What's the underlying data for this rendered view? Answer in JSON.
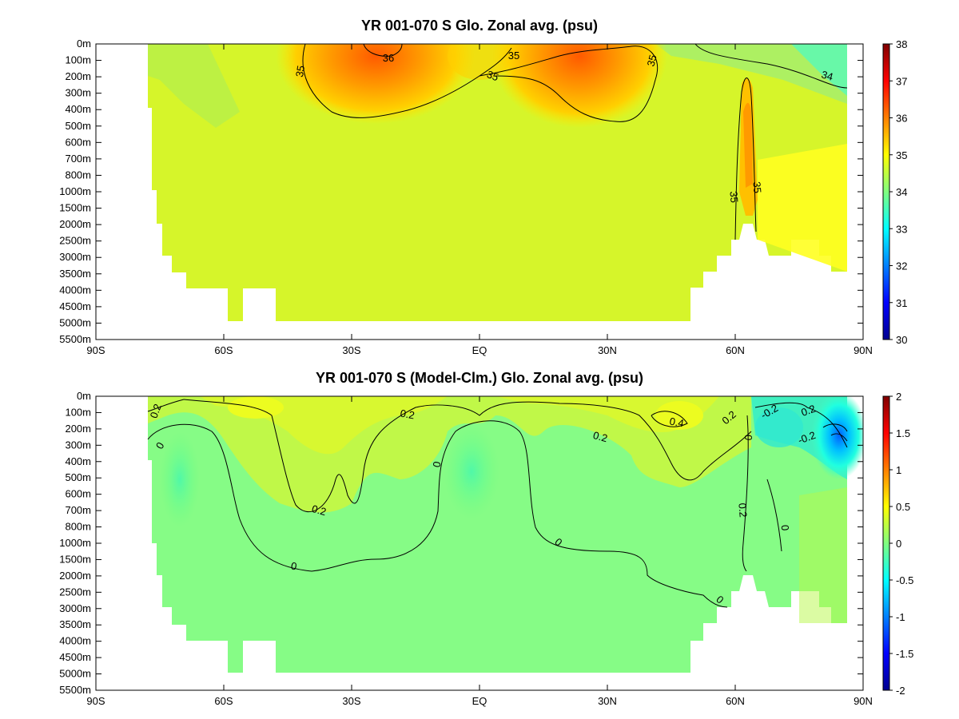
{
  "chart_data": [
    {
      "type": "heatmap",
      "subtype": "filled-contour",
      "title": "YR 001-070 S Glo. Zonal avg. (psu)",
      "x_ticks": [
        "90S",
        "60S",
        "30S",
        "EQ",
        "30N",
        "60N",
        "90N"
      ],
      "x_range": [
        -90,
        90
      ],
      "y_ticks": [
        "0m",
        "100m",
        "200m",
        "300m",
        "400m",
        "500m",
        "600m",
        "700m",
        "800m",
        "1000m",
        "1500m",
        "2000m",
        "2500m",
        "3000m",
        "3500m",
        "4000m",
        "4500m",
        "5000m",
        "5500m"
      ],
      "y_range_m": [
        0,
        5500
      ],
      "colorbar": {
        "min": 30,
        "max": 38,
        "ticks": [
          "38",
          "37",
          "36",
          "35",
          "34",
          "33",
          "32",
          "31",
          "30"
        ]
      },
      "contour_labels": [
        "35",
        "36",
        "35",
        "35",
        "35",
        "34",
        "35",
        "35"
      ],
      "colormap": [
        "#00008f",
        "#0000ff",
        "#0080ff",
        "#00ffff",
        "#80ff80",
        "#ffff00",
        "#ff8000",
        "#ff0000",
        "#800000"
      ]
    },
    {
      "type": "heatmap",
      "subtype": "filled-contour",
      "title": "YR 001-070 S (Model-Clm.) Glo. Zonal avg. (psu)",
      "x_ticks": [
        "90S",
        "60S",
        "30S",
        "EQ",
        "30N",
        "60N",
        "90N"
      ],
      "x_range": [
        -90,
        90
      ],
      "y_ticks": [
        "0m",
        "100m",
        "200m",
        "300m",
        "400m",
        "500m",
        "600m",
        "700m",
        "800m",
        "1000m",
        "1500m",
        "2000m",
        "2500m",
        "3000m",
        "3500m",
        "4000m",
        "4500m",
        "5000m",
        "5500m"
      ],
      "y_range_m": [
        0,
        5500
      ],
      "colorbar": {
        "min": -2,
        "max": 2,
        "ticks": [
          "2",
          "1.5",
          "1",
          "0.5",
          "0",
          "-0.5",
          "-1",
          "-1.5",
          "-2"
        ]
      },
      "contour_labels": [
        "0.2",
        "0",
        "0.2",
        "0.2",
        "0",
        "0",
        "0.2",
        "0.4",
        "0.2",
        "-0.2",
        "0.2",
        "-0.2",
        "0",
        "0.2",
        "0",
        "0",
        "0"
      ],
      "colormap": [
        "#00008f",
        "#0000ff",
        "#0080ff",
        "#00ffff",
        "#80ff80",
        "#ffff00",
        "#ff8000",
        "#ff0000",
        "#800000"
      ]
    }
  ]
}
